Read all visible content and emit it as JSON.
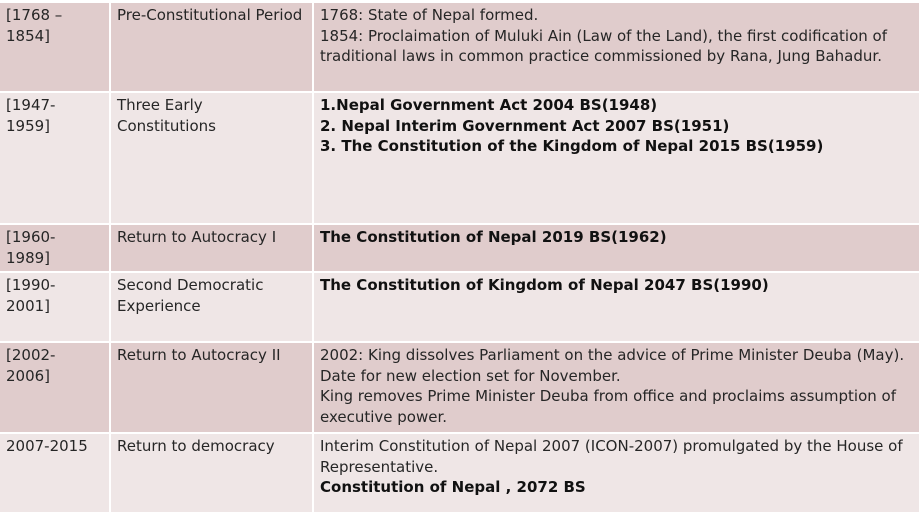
{
  "rows": [
    {
      "period": "[1768 – 1854]",
      "name": "Pre-Constitutional Period",
      "lines": [
        "1768: State of Nepal formed.",
        "1854: Proclaimation of Muluki Ain (Law of the Land), the first codification of traditional laws in common practice commissioned by Rana, Jung Bahadur."
      ]
    },
    {
      "period": "[1947- 1959]",
      "name": "Three Early Constitutions",
      "lines": [
        "1.Nepal Government Act 2004 BS(1948)",
        "2. Nepal Interim Government Act 2007 BS(1951)",
        "3. The Constitution of the Kingdom of Nepal 2015 BS(1959)"
      ]
    },
    {
      "period": "[1960- 1989]",
      "name": "Return to Autocracy I",
      "lines": [
        "The Constitution of Nepal 2019 BS(1962)"
      ]
    },
    {
      "period": "[1990- 2001]",
      "name": "Second Democratic Experience",
      "lines": [
        "The Constitution of Kingdom of Nepal 2047 BS(1990)"
      ]
    },
    {
      "period": "[2002- 2006]",
      "name": "Return to Autocracy II",
      "lines": [
        "2002: King dissolves Parliament on the advice of Prime Minister Deuba (May). Date for new election set for November.",
        "King removes Prime Minister Deuba from office and proclaims assumption of executive power."
      ]
    },
    {
      "period": "2007-2015",
      "name": "Return to democracy",
      "lines": [
        "Interim Constitution of Nepal 2007 (ICON-2007) promulgated by the House of Representative.",
        "Constitution of Nepal , 2072 BS"
      ]
    }
  ]
}
